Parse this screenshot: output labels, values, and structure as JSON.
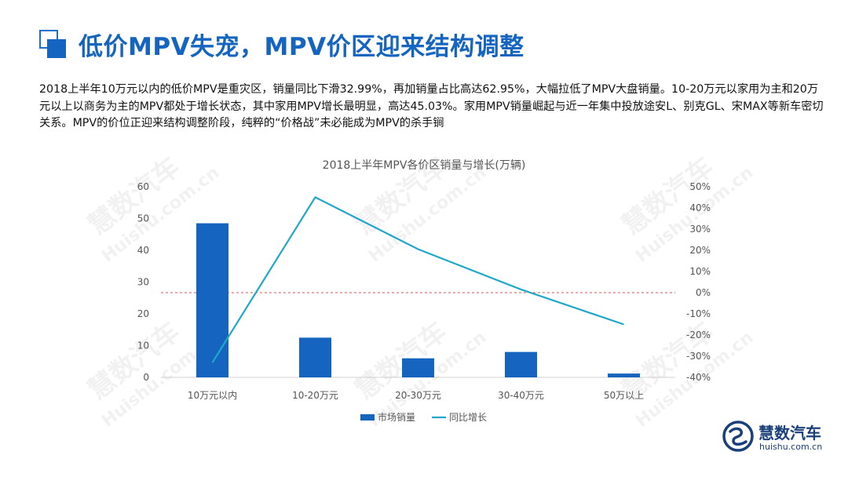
{
  "page": {
    "title": "低价MPV失宠，MPV价区迎来结构调整",
    "summary": "2018上半年10万元以内的低价MPV是重灾区，销量同比下滑32.99%，再加销量占比高达62.95%，大幅拉低了MPV大盘销量。10-20万元以家用为主和20万元以上以商务为主的MPV都处于增长状态，其中家用MPV增长最明显，高达45.03%。家用MPV销量崛起与近一年集中投放途安L、别克GL、宋MAX等新车密切关系。MPV的价位正迎来结构调整阶段，纯粹的“价格战”未必能成为MPV的杀手锏",
    "title_icon": "square-outline-icon"
  },
  "watermark": {
    "cn": "慧数汽车",
    "en": "Huishu.com.cn"
  },
  "logo": {
    "name": "慧数汽车",
    "url": "huishu.com.cn",
    "icon": "huishu-logo-icon"
  },
  "colors": {
    "bar": "#1565c0",
    "line": "#1fa8c9",
    "zero_line": "#d9534f",
    "title": "#1565c0"
  },
  "chart_data": {
    "type": "bar",
    "title": "2018上半年MPV各价区销量与增长(万辆)",
    "categories": [
      "10万元以内",
      "10-20万元",
      "20-30万元",
      "30-40万元",
      "50万以上"
    ],
    "series": [
      {
        "name": "市场销量",
        "type": "bar",
        "axis": "left",
        "values": [
          48.5,
          12.5,
          6,
          8,
          1.2
        ]
      },
      {
        "name": "同比增长",
        "type": "line",
        "axis": "right",
        "values": [
          -32.99,
          45.03,
          20.5,
          1.5,
          -15
        ]
      }
    ],
    "y_left": {
      "min": 0,
      "max": 60,
      "ticks": [
        0,
        10,
        20,
        30,
        40,
        50,
        60
      ]
    },
    "y_right": {
      "min": -40,
      "max": 50,
      "ticks": [
        "-40%",
        "-30%",
        "-20%",
        "-10%",
        "0%",
        "10%",
        "20%",
        "30%",
        "40%",
        "50%"
      ]
    },
    "zero_reference_line": "dashed",
    "legend_position": "bottom",
    "grid": false
  }
}
